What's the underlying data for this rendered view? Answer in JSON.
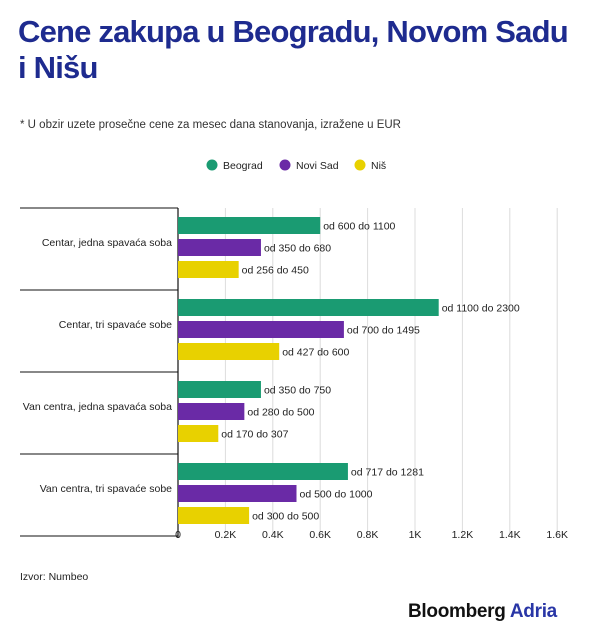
{
  "header": {
    "title": "Cene zakupa u Beogradu, Novom Sadu i Nišu",
    "note": "* U obzir uzete prosečne cene za mesec dana stanovanja, izražene u EUR"
  },
  "footer": {
    "source": "Izvor: Numbeo",
    "brand_main": "Bloomberg",
    "brand_accent": "Adria"
  },
  "colors": {
    "beograd": "#1a9b72",
    "novi_sad": "#6a2aa6",
    "nis": "#e8d100",
    "title": "#1e2b8f"
  },
  "chart_data": {
    "type": "bar",
    "orientation": "horizontal",
    "title": "Cene zakupa u Beogradu, Novom Sadu i Nišu",
    "categories": [
      "Centar, jedna spavaća soba",
      "Centar, tri spavaće sobe",
      "Van centra, jedna spavaća soba",
      "Van centra, tri spavaće sobe"
    ],
    "series": [
      {
        "name": "Beograd",
        "color": "#1a9b72",
        "values": [
          600,
          1100,
          350,
          717
        ],
        "labels": [
          "od 600 do 1100",
          "od 1100 do 2300",
          "od 350 do 750",
          "od 717 do 1281"
        ]
      },
      {
        "name": "Novi Sad",
        "color": "#6a2aa6",
        "values": [
          350,
          700,
          280,
          500
        ],
        "labels": [
          "od 350 do 680",
          "od 700 do 1495",
          "od 280 do 500",
          "od 500 do 1000"
        ]
      },
      {
        "name": "Niš",
        "color": "#e8d100",
        "values": [
          256,
          427,
          170,
          300
        ],
        "labels": [
          "od 256 do 450",
          "od 427 do 600",
          "od 170 do 307",
          "od 300 do 500"
        ]
      }
    ],
    "x_ticks": [
      "0",
      "0.2K",
      "0.4K",
      "0.6K",
      "0.8K",
      "1K",
      "1.2K",
      "1.4K",
      "1.6K"
    ],
    "xlim": [
      0,
      1600
    ],
    "grid": "vertical",
    "legend": "top-center"
  }
}
